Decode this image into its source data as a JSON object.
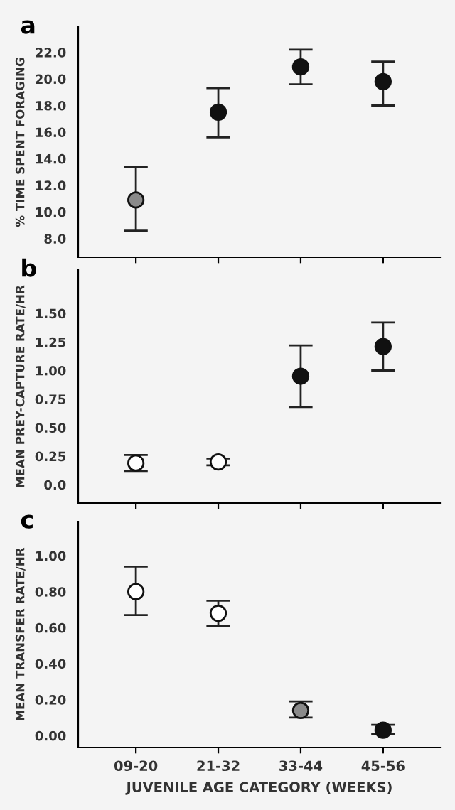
{
  "chart_data": [
    {
      "type": "scatter",
      "title": "a",
      "ylabel": "% TIME SPENT FORAGING",
      "categories": [
        null,
        null,
        null,
        null
      ],
      "values": [
        10.9,
        17.5,
        20.9,
        19.8
      ],
      "errors": [
        [
          8.6,
          13.4
        ],
        [
          15.6,
          19.3
        ],
        [
          19.6,
          22.2
        ],
        [
          18.0,
          21.3
        ]
      ],
      "colors": [
        "#8a8a8a",
        "#111111",
        "#111111",
        "#111111"
      ],
      "marker": "circle",
      "ylim": [
        6.6,
        23.9
      ],
      "yticks": [
        {
          "value": 8,
          "label": "8.0"
        },
        {
          "value": 10,
          "label": "10.0"
        },
        {
          "value": 12,
          "label": "12.0"
        },
        {
          "value": 14,
          "label": "14.0"
        },
        {
          "value": 16,
          "label": "16.0"
        },
        {
          "value": 18,
          "label": "18.0"
        },
        {
          "value": 20,
          "label": "20.0"
        },
        {
          "value": 22,
          "label": "22.0"
        }
      ],
      "grid": false,
      "legend": false
    },
    {
      "type": "scatter",
      "title": "b",
      "ylabel": "MEAN PREY-CAPTURE RATE/HR",
      "categories": [
        null,
        null,
        null,
        null
      ],
      "values": [
        0.19,
        0.2,
        0.95,
        1.21
      ],
      "errors": [
        [
          0.12,
          0.26
        ],
        [
          0.17,
          0.23
        ],
        [
          0.68,
          1.22
        ],
        [
          1.0,
          1.42
        ]
      ],
      "colors": [
        "#ffffff",
        "#ffffff",
        "#111111",
        "#111111"
      ],
      "marker": "circle",
      "ylim": [
        -0.16,
        1.88
      ],
      "yticks": [
        {
          "value": 0,
          "label": "0.0"
        },
        {
          "value": 0.25,
          "label": "0.25"
        },
        {
          "value": 0.5,
          "label": "0.50"
        },
        {
          "value": 0.75,
          "label": "0.75"
        },
        {
          "value": 1,
          "label": "1.00"
        },
        {
          "value": 1.25,
          "label": "1.25"
        },
        {
          "value": 1.5,
          "label": "1.50"
        }
      ],
      "grid": false,
      "legend": false
    },
    {
      "type": "scatter",
      "title": "c",
      "ylabel": "MEAN TRANSFER RATE/HR",
      "xlabel": "JUVENILE AGE CATEGORY (WEEKS)",
      "categories": [
        "09-20",
        "21-32",
        "33-44",
        "45-56"
      ],
      "values": [
        0.8,
        0.68,
        0.14,
        0.03
      ],
      "errors": [
        [
          0.67,
          0.94
        ],
        [
          0.61,
          0.75
        ],
        [
          0.1,
          0.19
        ],
        [
          0.01,
          0.06
        ]
      ],
      "colors": [
        "#ffffff",
        "#ffffff",
        "#8a8a8a",
        "#111111"
      ],
      "marker": "circle",
      "ylim": [
        -0.066,
        1.19
      ],
      "yticks": [
        {
          "value": 0,
          "label": "0.00"
        },
        {
          "value": 0.2,
          "label": "0.20"
        },
        {
          "value": 0.4,
          "label": "0.40"
        },
        {
          "value": 0.6,
          "label": "0.60"
        },
        {
          "value": 0.8,
          "label": "0.80"
        },
        {
          "value": 1,
          "label": "1.00"
        }
      ],
      "grid": false,
      "legend": false
    }
  ]
}
